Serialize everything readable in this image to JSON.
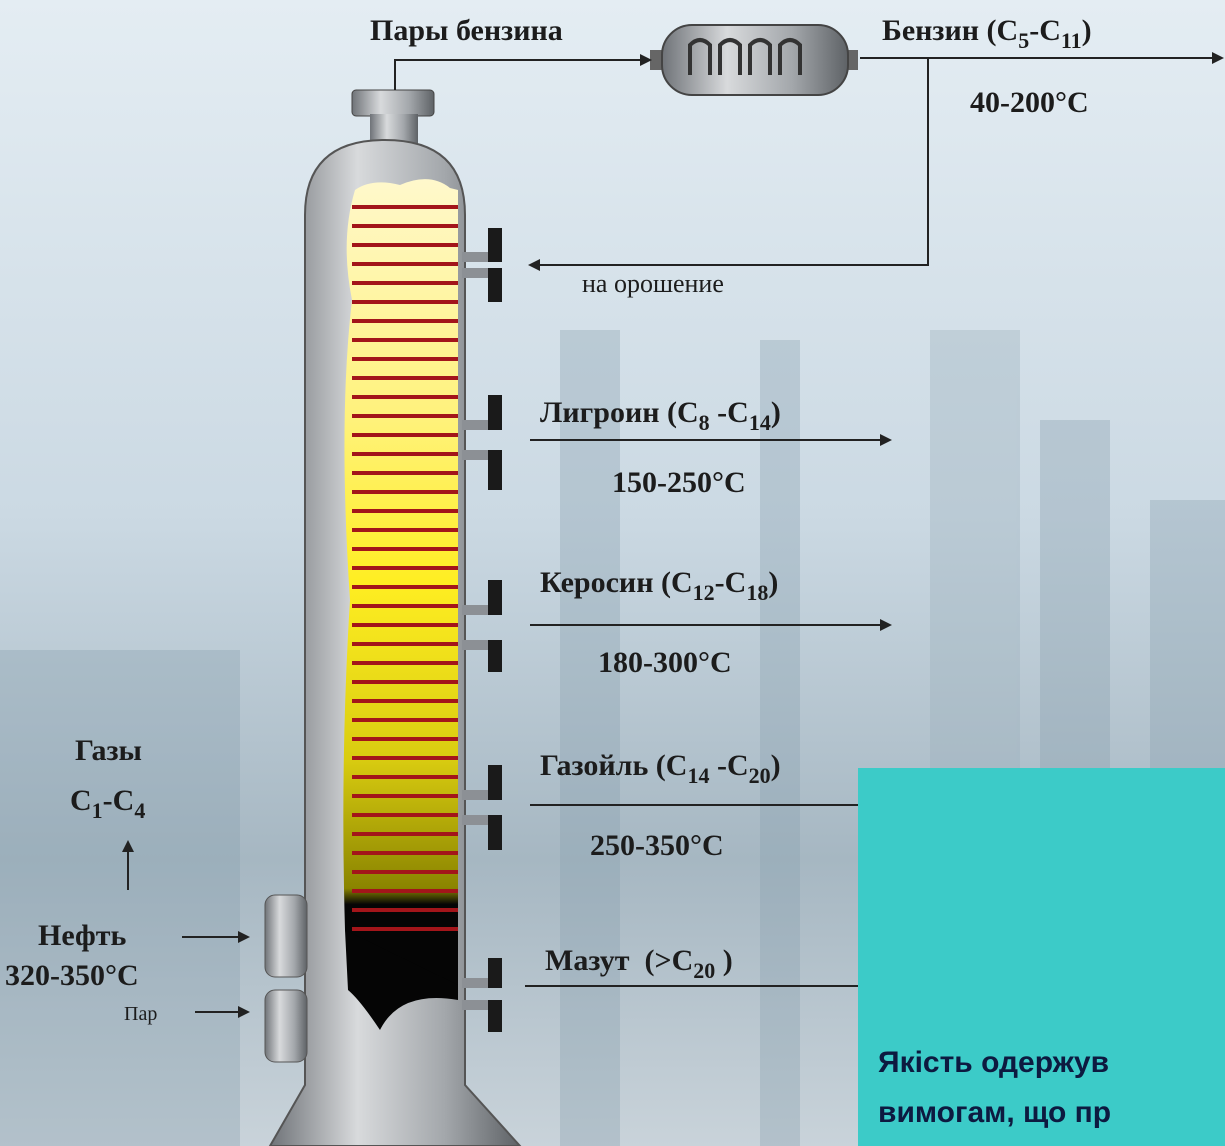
{
  "labels": {
    "vapors": "Пары бензина",
    "gasoline": {
      "parts": [
        "Бензин (C",
        "5",
        "-C",
        "11",
        ")"
      ],
      "temp": "40-200°C"
    },
    "reflux": "на орошение",
    "ligroin": {
      "parts": [
        "Лигроин (C",
        "8",
        " -C",
        "14",
        ")"
      ],
      "temp": "150-250°C"
    },
    "kerosene": {
      "parts": [
        "Керосин (C",
        "12",
        "-C",
        "18",
        ")"
      ],
      "temp": "180-300°C"
    },
    "gasoil": {
      "parts": [
        "Газойль (C",
        "14",
        " -C",
        "20",
        ")"
      ],
      "temp": "250-350°C"
    },
    "mazut": {
      "parts": [
        "Мазут  (>C",
        "20",
        " )"
      ]
    },
    "gases": {
      "title": "Газы",
      "parts": [
        "C",
        "1",
        "-C",
        "4"
      ]
    },
    "oil": {
      "title": "Нефть",
      "temp": "320-350°C"
    },
    "steam": "Пар"
  },
  "note": [
    "Якість одержув",
    "вимогам, що пр"
  ]
}
